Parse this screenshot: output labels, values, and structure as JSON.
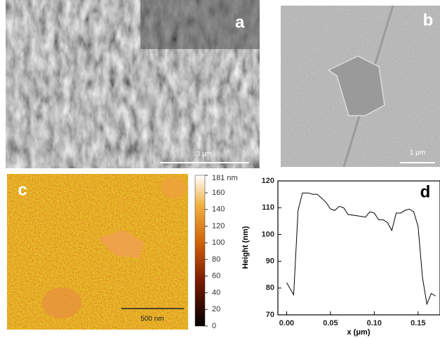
{
  "panels": {
    "a": {
      "label": "a",
      "scale_bar": "3 μm"
    },
    "b": {
      "label": "b",
      "scale_bar": "1 μm"
    },
    "c": {
      "label": "c",
      "scale_bar": "500 nm",
      "colorbar": {
        "lim": [
          0,
          181
        ],
        "ticks": [
          {
            "value": 181,
            "label": "181 nm"
          },
          160,
          140,
          120,
          100,
          80,
          60,
          40,
          20,
          0
        ]
      }
    }
  },
  "chart_data": {
    "type": "line",
    "label": "d",
    "x_label": "x (μm)",
    "y_label": "Height (nm)",
    "x": [
      0.0,
      0.008,
      0.013,
      0.018,
      0.025,
      0.03,
      0.035,
      0.045,
      0.05,
      0.055,
      0.06,
      0.065,
      0.07,
      0.08,
      0.09,
      0.095,
      0.1,
      0.105,
      0.11,
      0.115,
      0.12,
      0.125,
      0.13,
      0.135,
      0.14,
      0.145,
      0.15,
      0.155,
      0.16,
      0.165,
      0.17
    ],
    "series": [
      {
        "color": "#000000",
        "values": [
          82,
          77.5,
          109,
          115.5,
          115.5,
          115,
          115,
          112,
          109.5,
          109,
          110.5,
          110,
          107.5,
          107,
          106.5,
          108.5,
          108,
          105.5,
          105.5,
          104.5,
          101.5,
          108,
          108,
          109,
          109.5,
          108.5,
          103,
          84,
          74,
          78,
          77
        ]
      }
    ],
    "xlim": [
      -0.01,
      0.175
    ],
    "ylim": [
      70,
      120
    ],
    "xticks": [
      {
        "value": 0,
        "label": "0.00"
      },
      0.05,
      {
        "value": 0.1,
        "label": "0.10"
      },
      0.15
    ],
    "yticks": [
      70,
      80,
      90,
      100,
      110,
      120
    ]
  }
}
